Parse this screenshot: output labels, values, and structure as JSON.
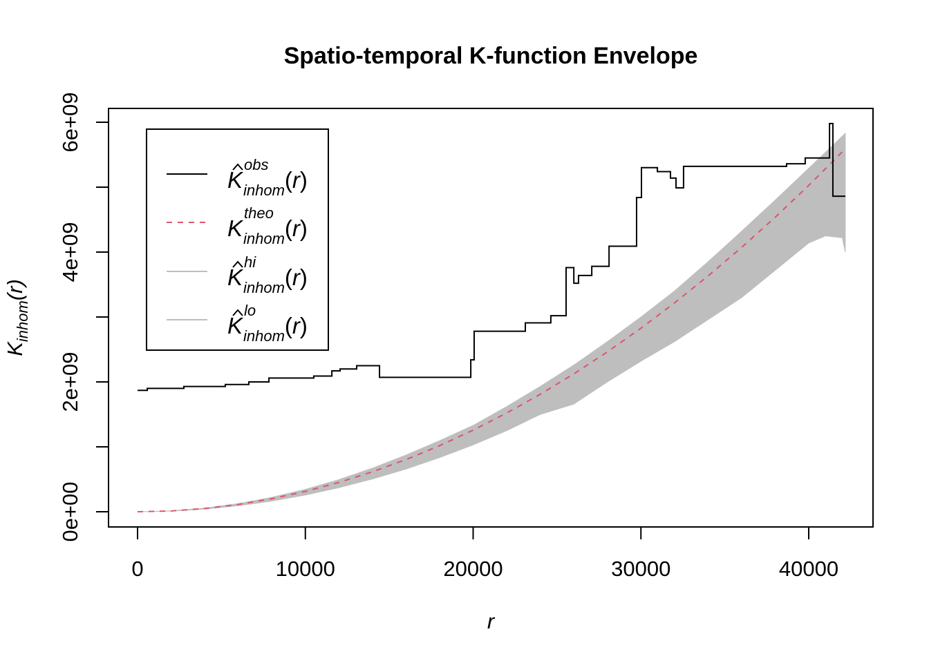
{
  "chart_data": {
    "type": "line",
    "title": "Spatio-temporal K-function Envelope",
    "xlabel": "r",
    "ylabel": {
      "main": "K",
      "sub": "inhom",
      "arg": "(r)"
    },
    "xlim": [
      0,
      42200
    ],
    "ylim": [
      0,
      6000000000
    ],
    "x_ticks": [
      0,
      10000,
      20000,
      30000,
      40000
    ],
    "x_tick_labels": [
      "0",
      "10000",
      "20000",
      "30000",
      "40000"
    ],
    "y_ticks": [
      0,
      2000000000,
      4000000000,
      6000000000
    ],
    "y_tick_labels": [
      "0e+00",
      "2e+09",
      "4e+09",
      "6e+09"
    ],
    "y_minor_ticks": [
      1000000000,
      3000000000,
      5000000000
    ],
    "legend_position": "top-left",
    "legend": [
      {
        "main": "K",
        "hat": true,
        "sup": "obs",
        "sub": "inhom",
        "arg": "(r)",
        "color": "#000000",
        "style": "solid"
      },
      {
        "main": "K",
        "hat": false,
        "sup": "theo",
        "sub": "inhom",
        "arg": "(r)",
        "color": "#DF536B",
        "style": "dashed"
      },
      {
        "main": "K",
        "hat": true,
        "sup": "hi",
        "sub": "inhom",
        "arg": "(r)",
        "color": "#BEBEBE",
        "style": "solid"
      },
      {
        "main": "K",
        "hat": true,
        "sup": "lo",
        "sub": "inhom",
        "arg": "(r)",
        "color": "#BEBEBE",
        "style": "solid"
      }
    ],
    "units_note_y": 1000000000,
    "series": [
      {
        "name": "obs",
        "kind": "step",
        "r": [
          0,
          580,
          2760,
          5230,
          6630,
          7830,
          10500,
          11580,
          12070,
          13060,
          14420,
          19860,
          20060,
          23110,
          24630,
          25540,
          26000,
          26280,
          27070,
          28100,
          29740,
          30030,
          30980,
          31760,
          32090,
          32540,
          38680,
          39790,
          41240,
          41440,
          42180
        ],
        "k_e9": [
          1.87,
          1.9,
          1.93,
          1.96,
          2.0,
          2.06,
          2.09,
          2.17,
          2.2,
          2.25,
          2.07,
          2.34,
          2.78,
          2.91,
          3.02,
          3.76,
          3.52,
          3.64,
          3.78,
          4.09,
          4.84,
          5.3,
          5.24,
          5.14,
          4.99,
          5.32,
          5.36,
          5.45,
          5.98,
          4.86,
          4.86
        ]
      },
      {
        "name": "theo",
        "kind": "line",
        "r": [
          0,
          2000,
          4000,
          6000,
          8000,
          10000,
          12000,
          14000,
          16000,
          18000,
          20000,
          22000,
          24000,
          26000,
          28000,
          30000,
          32000,
          34000,
          36000,
          38000,
          40000,
          42180
        ],
        "k_e9": [
          0,
          0.0126,
          0.0503,
          0.113,
          0.201,
          0.314,
          0.452,
          0.616,
          0.804,
          1.018,
          1.257,
          1.521,
          1.81,
          2.124,
          2.463,
          2.827,
          3.217,
          3.632,
          4.072,
          4.536,
          5.027,
          5.59
        ]
      },
      {
        "name": "hi",
        "kind": "band-upper",
        "r": [
          0,
          2000,
          4000,
          6000,
          8000,
          10000,
          12000,
          14000,
          16000,
          18000,
          20000,
          22000,
          24000,
          26000,
          28000,
          30000,
          32000,
          34000,
          36000,
          38000,
          40000,
          42180
        ],
        "k_e9": [
          0,
          0.014,
          0.056,
          0.125,
          0.222,
          0.345,
          0.495,
          0.672,
          0.872,
          1.095,
          1.33,
          1.62,
          1.93,
          2.26,
          2.62,
          3.0,
          3.4,
          3.85,
          4.32,
          4.8,
          5.29,
          5.83
        ]
      },
      {
        "name": "lo",
        "kind": "band-lower",
        "r": [
          0,
          2000,
          4000,
          6000,
          8000,
          10000,
          12000,
          14000,
          16000,
          18000,
          20000,
          22000,
          24000,
          26000,
          28000,
          30000,
          32000,
          34000,
          36000,
          38000,
          40000,
          41000,
          42000,
          42180
        ],
        "k_e9": [
          0,
          0.01,
          0.041,
          0.093,
          0.165,
          0.258,
          0.371,
          0.505,
          0.659,
          0.835,
          1.031,
          1.25,
          1.5,
          1.66,
          2.0,
          2.32,
          2.62,
          2.96,
          3.3,
          3.72,
          4.14,
          4.25,
          4.22,
          4.0
        ]
      }
    ]
  }
}
